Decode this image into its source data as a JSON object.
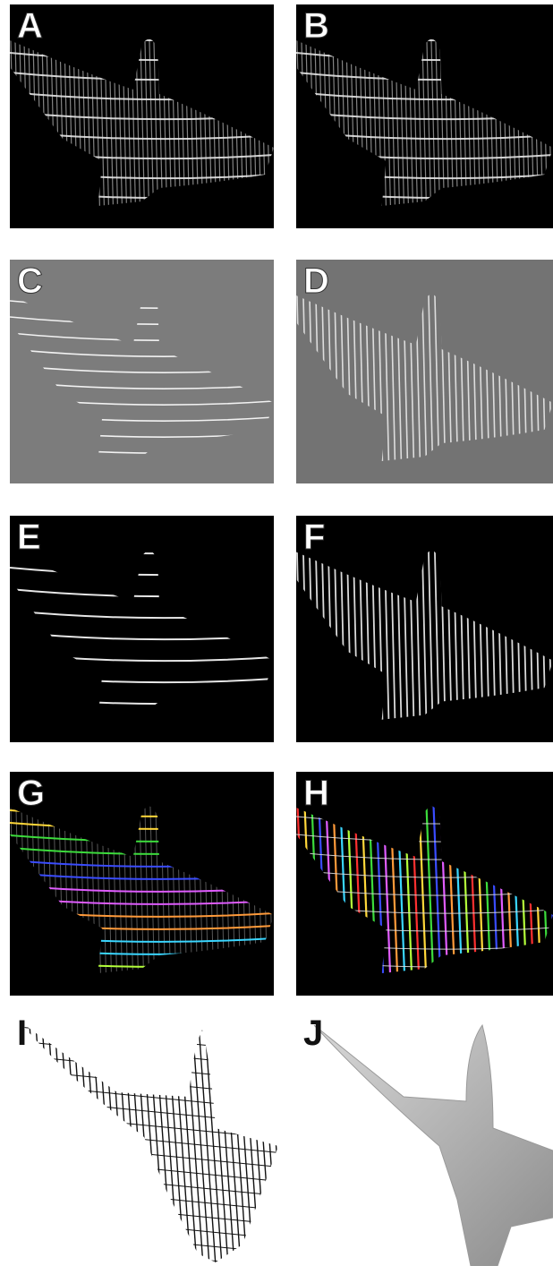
{
  "panels": [
    {
      "id": "A",
      "label": "A"
    },
    {
      "id": "B",
      "label": "B"
    },
    {
      "id": "C",
      "label": "C"
    },
    {
      "id": "D",
      "label": "D"
    },
    {
      "id": "E",
      "label": "E"
    },
    {
      "id": "F",
      "label": "F"
    },
    {
      "id": "G",
      "label": "G"
    },
    {
      "id": "H",
      "label": "H"
    },
    {
      "id": "I",
      "label": "I"
    },
    {
      "id": "J",
      "label": "J"
    }
  ],
  "colors": {
    "stripe": "#e6e6e6",
    "gray_panel_c": "#7c7c7c",
    "gray_panel_d": "#737373",
    "surface": "#bdbdbd"
  },
  "rainbow": [
    "#ff3030",
    "#ffd83a",
    "#3cdc3c",
    "#3a4cff",
    "#e05cff",
    "#ff9a3a",
    "#3ad6ff",
    "#b4ff3a"
  ]
}
